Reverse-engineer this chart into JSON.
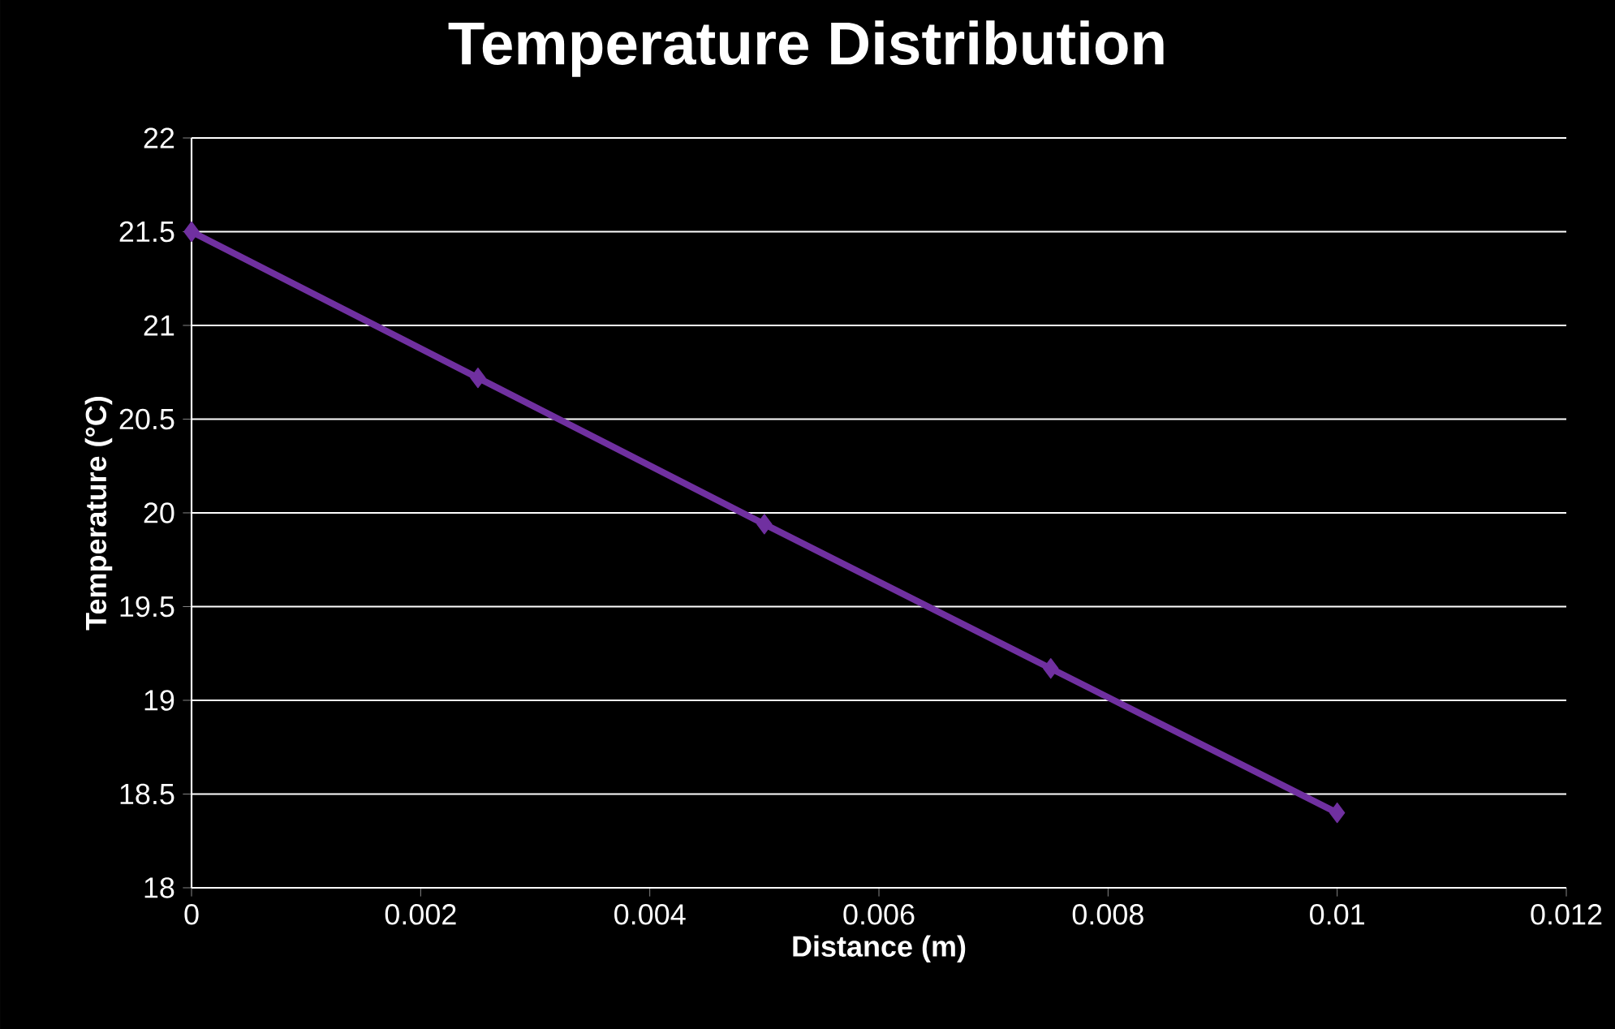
{
  "chart_data": {
    "type": "line",
    "title": "Temperature Distribution",
    "xlabel": "Distance (m)",
    "ylabel": "Temperature (°C)",
    "x": [
      0,
      0.0025,
      0.005,
      0.0075,
      0.01
    ],
    "series": [
      {
        "color": "#7030a0",
        "values": [
          21.5,
          20.72,
          19.94,
          19.17,
          18.4
        ]
      }
    ],
    "xlim": [
      0,
      0.012
    ],
    "xticks": [
      0,
      0.002,
      0.004,
      0.006,
      0.008,
      0.01,
      0.012
    ],
    "ylim": [
      18,
      22
    ],
    "yticks": [
      18,
      18.5,
      19,
      19.5,
      20,
      20.5,
      21,
      21.5,
      22
    ],
    "grid": "y",
    "marker": "diamond",
    "line_style": "solid"
  }
}
